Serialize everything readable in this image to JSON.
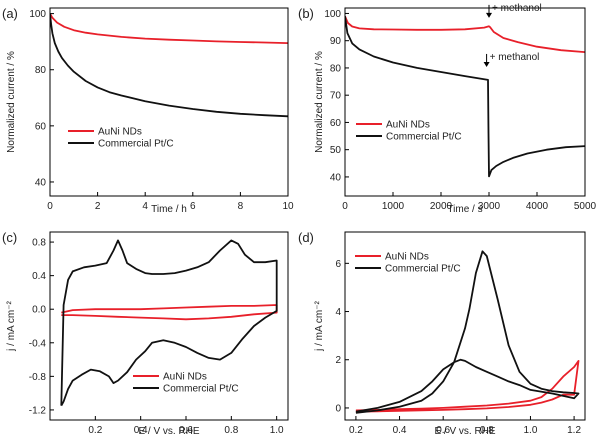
{
  "chart_data": [
    {
      "panel": "(a)",
      "type": "line",
      "xlabel": "Time / h",
      "ylabel": "Normalized current / %",
      "xlim": [
        0,
        10
      ],
      "ylim": [
        35,
        102
      ],
      "xticks": [
        0,
        2,
        4,
        6,
        8,
        10
      ],
      "yticks": [
        40,
        60,
        80,
        100
      ],
      "legend_position": "lower-left",
      "series": [
        {
          "name": "AuNi NDs",
          "color": "#e8202a",
          "x": [
            0,
            0.1,
            0.3,
            0.6,
            1,
            1.5,
            2,
            3,
            4,
            5,
            6,
            7,
            8,
            9,
            10
          ],
          "y": [
            100,
            98.5,
            96.8,
            95.3,
            94.1,
            93.2,
            92.6,
            91.7,
            91.1,
            90.7,
            90.4,
            90.1,
            89.9,
            89.7,
            89.5
          ]
        },
        {
          "name": "Commercial Pt/C",
          "color": "#111111",
          "x": [
            0,
            0.05,
            0.1,
            0.2,
            0.35,
            0.5,
            0.75,
            1,
            1.5,
            2,
            2.5,
            3,
            4,
            5,
            6,
            7,
            8,
            9,
            10
          ],
          "y": [
            100,
            96,
            93,
            89.5,
            86.5,
            84.2,
            81.5,
            79.3,
            76,
            73.7,
            72,
            70.8,
            68.8,
            67.2,
            66,
            65,
            64.3,
            63.8,
            63.4
          ]
        }
      ]
    },
    {
      "panel": "(b)",
      "type": "line",
      "xlabel": "Time / s",
      "ylabel": "Normalized current / %",
      "xlim": [
        0,
        5000
      ],
      "ylim": [
        33,
        102
      ],
      "xticks": [
        0,
        1000,
        2000,
        3000,
        4000,
        5000
      ],
      "yticks": [
        40,
        50,
        60,
        70,
        80,
        90,
        100
      ],
      "legend_position": "lower-left",
      "annotations": [
        {
          "text": "+ methanol",
          "x": 3000,
          "y": 98,
          "target": "AuNi NDs"
        },
        {
          "text": "+ methanol",
          "x": 2950,
          "y": 80,
          "target": "Commercial Pt/C"
        }
      ],
      "series": [
        {
          "name": "AuNi NDs",
          "color": "#e8202a",
          "x": [
            0,
            60,
            150,
            300,
            600,
            1000,
            1500,
            2000,
            2500,
            2900,
            3000,
            3020,
            3100,
            3300,
            3600,
            4000,
            4500,
            5000
          ],
          "y": [
            99,
            96.5,
            95.2,
            94.5,
            94.2,
            94.1,
            94.0,
            94.0,
            94.2,
            94.8,
            95.3,
            95.0,
            93.2,
            91,
            89.5,
            87.8,
            86.5,
            85.8
          ]
        },
        {
          "name": "Commercial Pt/C",
          "color": "#111111",
          "x": [
            0,
            50,
            150,
            300,
            600,
            1000,
            1500,
            2000,
            2500,
            2980,
            2990,
            3000,
            3050,
            3150,
            3300,
            3500,
            3800,
            4200,
            4600,
            5000
          ],
          "y": [
            99,
            92.8,
            89,
            86.8,
            84.2,
            82,
            80,
            78.5,
            77,
            75.6,
            56,
            40.2,
            42.5,
            44,
            45.5,
            47,
            48.6,
            50,
            50.9,
            51.3
          ]
        }
      ]
    },
    {
      "panel": "(c)",
      "type": "line",
      "xlabel": "E / V vs. RHE",
      "ylabel": "j / mA cm⁻²",
      "xlim": [
        0,
        1.05
      ],
      "ylim": [
        -1.32,
        0.92
      ],
      "xticks": [
        0.2,
        0.4,
        0.6,
        0.8,
        1.0
      ],
      "yticks": [
        -1.2,
        -0.8,
        -0.4,
        0.0,
        0.4,
        0.8
      ],
      "legend_position": "lower-center",
      "series": [
        {
          "name": "AuNi NDs",
          "color": "#e8202a",
          "x": [
            0.05,
            0.1,
            0.2,
            0.3,
            0.4,
            0.5,
            0.6,
            0.7,
            0.8,
            0.9,
            1.0,
            1.0,
            0.9,
            0.8,
            0.7,
            0.6,
            0.5,
            0.4,
            0.3,
            0.2,
            0.1,
            0.05
          ],
          "y": [
            -0.04,
            -0.01,
            0.0,
            0.0,
            0.0,
            0.01,
            0.02,
            0.03,
            0.04,
            0.04,
            0.05,
            -0.04,
            -0.06,
            -0.09,
            -0.11,
            -0.12,
            -0.11,
            -0.1,
            -0.09,
            -0.08,
            -0.07,
            -0.07
          ]
        },
        {
          "name": "Commercial Pt/C",
          "color": "#111111",
          "x": [
            0.05,
            0.06,
            0.08,
            0.1,
            0.15,
            0.2,
            0.25,
            0.28,
            0.3,
            0.32,
            0.34,
            0.38,
            0.42,
            0.45,
            0.5,
            0.55,
            0.6,
            0.65,
            0.7,
            0.75,
            0.8,
            0.83,
            0.86,
            0.9,
            0.95,
            1.0,
            1.0,
            0.95,
            0.9,
            0.85,
            0.8,
            0.75,
            0.7,
            0.65,
            0.6,
            0.55,
            0.5,
            0.45,
            0.42,
            0.38,
            0.34,
            0.3,
            0.28,
            0.26,
            0.22,
            0.18,
            0.14,
            0.1,
            0.08,
            0.06,
            0.05
          ],
          "y": [
            -1.15,
            0.05,
            0.35,
            0.45,
            0.5,
            0.52,
            0.55,
            0.7,
            0.82,
            0.7,
            0.55,
            0.48,
            0.43,
            0.42,
            0.42,
            0.43,
            0.46,
            0.5,
            0.56,
            0.7,
            0.82,
            0.78,
            0.65,
            0.56,
            0.56,
            0.58,
            -0.02,
            -0.1,
            -0.2,
            -0.35,
            -0.52,
            -0.6,
            -0.58,
            -0.52,
            -0.45,
            -0.4,
            -0.37,
            -0.4,
            -0.5,
            -0.6,
            -0.75,
            -0.85,
            -0.88,
            -0.8,
            -0.74,
            -0.72,
            -0.78,
            -0.85,
            -0.95,
            -1.1,
            -1.15
          ]
        }
      ]
    },
    {
      "panel": "(d)",
      "type": "line",
      "xlabel": "E / V vs. RHE",
      "ylabel": "j / mA cm⁻²",
      "xlim": [
        0.15,
        1.25
      ],
      "ylim": [
        -0.5,
        7.3
      ],
      "xticks": [
        0.2,
        0.4,
        0.6,
        0.8,
        1.0,
        1.2
      ],
      "yticks": [
        0,
        2,
        4,
        6
      ],
      "legend_position": "top-left",
      "series": [
        {
          "name": "AuNi NDs",
          "color": "#e8202a",
          "x": [
            0.2,
            0.3,
            0.4,
            0.5,
            0.6,
            0.7,
            0.8,
            0.9,
            1.0,
            1.05,
            1.1,
            1.15,
            1.2,
            1.22,
            1.2,
            1.15,
            1.1,
            1.05,
            1.0,
            0.9,
            0.8,
            0.7,
            0.6,
            0.5,
            0.4,
            0.3,
            0.2
          ],
          "y": [
            -0.1,
            -0.08,
            -0.05,
            -0.03,
            0.0,
            0.05,
            0.1,
            0.18,
            0.3,
            0.45,
            0.8,
            1.3,
            1.7,
            1.95,
            0.55,
            0.55,
            0.35,
            0.22,
            0.13,
            0.04,
            -0.02,
            -0.05,
            -0.08,
            -0.1,
            -0.12,
            -0.14,
            -0.15
          ]
        },
        {
          "name": "Commercial Pt/C",
          "color": "#111111",
          "x": [
            0.2,
            0.3,
            0.4,
            0.5,
            0.55,
            0.6,
            0.65,
            0.7,
            0.72,
            0.75,
            0.78,
            0.8,
            0.85,
            0.9,
            0.95,
            1.0,
            1.05,
            1.1,
            1.15,
            1.2,
            1.22,
            1.2,
            1.1,
            1.0,
            0.95,
            0.9,
            0.85,
            0.8,
            0.75,
            0.7,
            0.68,
            0.65,
            0.6,
            0.55,
            0.5,
            0.4,
            0.3,
            0.2
          ],
          "y": [
            -0.2,
            -0.1,
            0.05,
            0.3,
            0.6,
            1.1,
            1.9,
            3.3,
            4.1,
            5.6,
            6.5,
            6.3,
            4.5,
            2.6,
            1.5,
            1.0,
            0.8,
            0.7,
            0.65,
            0.62,
            0.6,
            0.4,
            0.6,
            0.75,
            0.95,
            1.1,
            1.3,
            1.5,
            1.7,
            1.95,
            2.0,
            1.9,
            1.6,
            1.1,
            0.7,
            0.25,
            0.0,
            -0.15
          ]
        }
      ]
    }
  ]
}
